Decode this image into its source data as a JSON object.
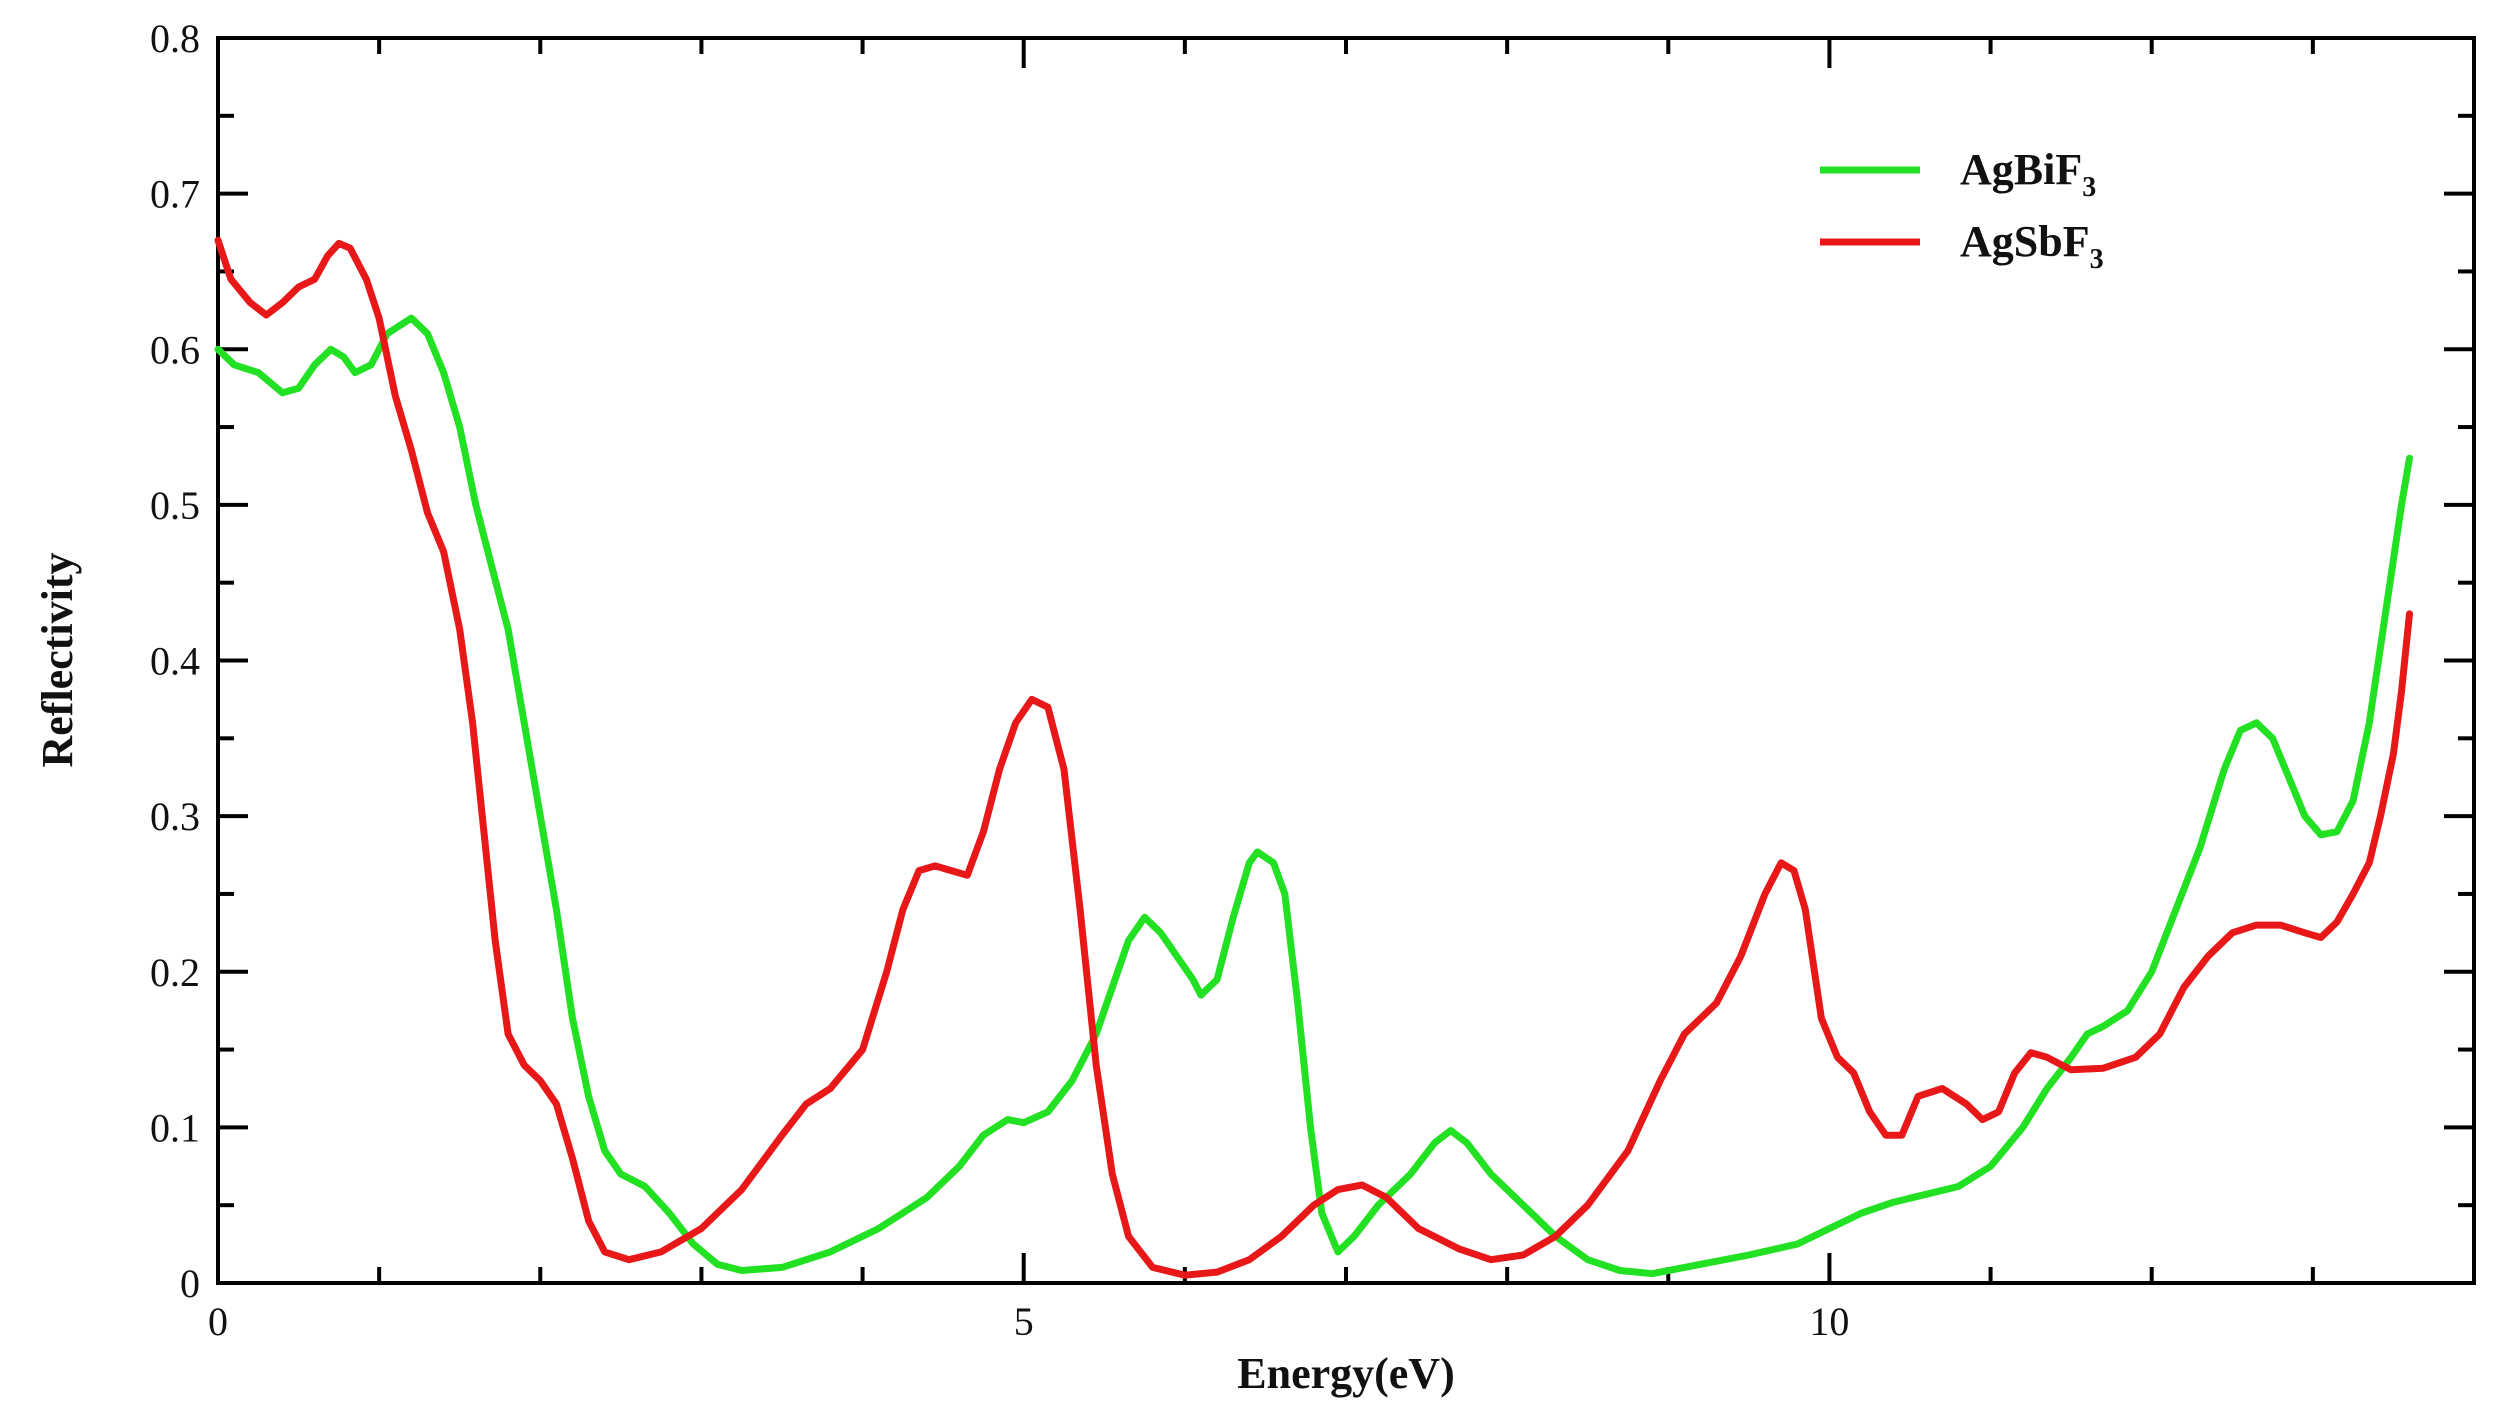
{
  "chart_data": {
    "type": "line",
    "title": "",
    "xlabel": "Energy(eV)",
    "ylabel": "Reflectivity",
    "xlim": [
      0,
      14
    ],
    "ylim": [
      0,
      0.8
    ],
    "x_ticks": [
      "0",
      "5",
      "10"
    ],
    "x_tick_values": [
      0,
      5,
      10
    ],
    "y_ticks": [
      "0",
      "0.1",
      "0.2",
      "0.3",
      "0.4",
      "0.5",
      "0.6",
      "0.7",
      "0.8"
    ],
    "y_tick_values": [
      0,
      0.1,
      0.2,
      0.3,
      0.4,
      0.5,
      0.6,
      0.7,
      0.8
    ],
    "grid": false,
    "legend_position": "top-right",
    "series": [
      {
        "name": "AgBiF",
        "name_subscript": "3",
        "color": "#22e022",
        "points": [
          [
            0.0,
            0.6
          ],
          [
            0.1,
            0.59
          ],
          [
            0.25,
            0.585
          ],
          [
            0.4,
            0.572
          ],
          [
            0.5,
            0.575
          ],
          [
            0.6,
            0.59
          ],
          [
            0.7,
            0.6
          ],
          [
            0.78,
            0.595
          ],
          [
            0.85,
            0.585
          ],
          [
            0.95,
            0.59
          ],
          [
            1.05,
            0.61
          ],
          [
            1.2,
            0.62
          ],
          [
            1.3,
            0.61
          ],
          [
            1.4,
            0.585
          ],
          [
            1.5,
            0.55
          ],
          [
            1.6,
            0.5
          ],
          [
            1.7,
            0.46
          ],
          [
            1.8,
            0.42
          ],
          [
            1.9,
            0.36
          ],
          [
            2.0,
            0.3
          ],
          [
            2.1,
            0.24
          ],
          [
            2.2,
            0.17
          ],
          [
            2.3,
            0.12
          ],
          [
            2.4,
            0.085
          ],
          [
            2.5,
            0.07
          ],
          [
            2.65,
            0.062
          ],
          [
            2.8,
            0.045
          ],
          [
            2.95,
            0.025
          ],
          [
            3.1,
            0.012
          ],
          [
            3.25,
            0.008
          ],
          [
            3.5,
            0.01
          ],
          [
            3.8,
            0.02
          ],
          [
            4.1,
            0.035
          ],
          [
            4.4,
            0.055
          ],
          [
            4.6,
            0.075
          ],
          [
            4.75,
            0.095
          ],
          [
            4.9,
            0.105
          ],
          [
            5.0,
            0.103
          ],
          [
            5.15,
            0.11
          ],
          [
            5.3,
            0.13
          ],
          [
            5.45,
            0.16
          ],
          [
            5.55,
            0.19
          ],
          [
            5.65,
            0.22
          ],
          [
            5.75,
            0.235
          ],
          [
            5.85,
            0.225
          ],
          [
            5.95,
            0.21
          ],
          [
            6.05,
            0.195
          ],
          [
            6.1,
            0.185
          ],
          [
            6.2,
            0.195
          ],
          [
            6.3,
            0.235
          ],
          [
            6.4,
            0.27
          ],
          [
            6.45,
            0.277
          ],
          [
            6.55,
            0.27
          ],
          [
            6.62,
            0.25
          ],
          [
            6.7,
            0.18
          ],
          [
            6.78,
            0.1
          ],
          [
            6.85,
            0.045
          ],
          [
            6.95,
            0.02
          ],
          [
            7.05,
            0.03
          ],
          [
            7.2,
            0.05
          ],
          [
            7.4,
            0.07
          ],
          [
            7.55,
            0.09
          ],
          [
            7.65,
            0.098
          ],
          [
            7.75,
            0.09
          ],
          [
            7.9,
            0.07
          ],
          [
            8.1,
            0.05
          ],
          [
            8.3,
            0.03
          ],
          [
            8.5,
            0.015
          ],
          [
            8.7,
            0.008
          ],
          [
            8.9,
            0.006
          ],
          [
            9.2,
            0.012
          ],
          [
            9.5,
            0.018
          ],
          [
            9.8,
            0.025
          ],
          [
            10.0,
            0.035
          ],
          [
            10.2,
            0.045
          ],
          [
            10.4,
            0.052
          ],
          [
            10.6,
            0.057
          ],
          [
            10.8,
            0.062
          ],
          [
            11.0,
            0.075
          ],
          [
            11.2,
            0.1
          ],
          [
            11.35,
            0.125
          ],
          [
            11.5,
            0.145
          ],
          [
            11.6,
            0.16
          ],
          [
            11.7,
            0.165
          ],
          [
            11.85,
            0.175
          ],
          [
            12.0,
            0.2
          ],
          [
            12.15,
            0.24
          ],
          [
            12.3,
            0.28
          ],
          [
            12.45,
            0.33
          ],
          [
            12.55,
            0.355
          ],
          [
            12.65,
            0.36
          ],
          [
            12.75,
            0.35
          ],
          [
            12.85,
            0.325
          ],
          [
            12.95,
            0.3
          ],
          [
            13.05,
            0.288
          ],
          [
            13.15,
            0.29
          ],
          [
            13.25,
            0.31
          ],
          [
            13.35,
            0.36
          ],
          [
            13.45,
            0.43
          ],
          [
            13.55,
            0.5
          ],
          [
            13.6,
            0.53
          ]
        ]
      },
      {
        "name": "AgSbF",
        "name_subscript": "3",
        "color": "#e81818",
        "points": [
          [
            0.0,
            0.67
          ],
          [
            0.08,
            0.645
          ],
          [
            0.2,
            0.63
          ],
          [
            0.3,
            0.622
          ],
          [
            0.4,
            0.63
          ],
          [
            0.5,
            0.64
          ],
          [
            0.6,
            0.645
          ],
          [
            0.68,
            0.66
          ],
          [
            0.75,
            0.668
          ],
          [
            0.82,
            0.665
          ],
          [
            0.92,
            0.645
          ],
          [
            1.0,
            0.62
          ],
          [
            1.1,
            0.57
          ],
          [
            1.2,
            0.535
          ],
          [
            1.3,
            0.495
          ],
          [
            1.4,
            0.47
          ],
          [
            1.5,
            0.42
          ],
          [
            1.58,
            0.36
          ],
          [
            1.65,
            0.29
          ],
          [
            1.72,
            0.22
          ],
          [
            1.8,
            0.16
          ],
          [
            1.9,
            0.14
          ],
          [
            2.0,
            0.13
          ],
          [
            2.1,
            0.115
          ],
          [
            2.2,
            0.08
          ],
          [
            2.3,
            0.04
          ],
          [
            2.4,
            0.02
          ],
          [
            2.55,
            0.015
          ],
          [
            2.75,
            0.02
          ],
          [
            3.0,
            0.035
          ],
          [
            3.25,
            0.06
          ],
          [
            3.5,
            0.095
          ],
          [
            3.65,
            0.115
          ],
          [
            3.8,
            0.125
          ],
          [
            4.0,
            0.15
          ],
          [
            4.15,
            0.2
          ],
          [
            4.25,
            0.24
          ],
          [
            4.35,
            0.265
          ],
          [
            4.45,
            0.268
          ],
          [
            4.55,
            0.265
          ],
          [
            4.65,
            0.262
          ],
          [
            4.75,
            0.29
          ],
          [
            4.85,
            0.33
          ],
          [
            4.95,
            0.36
          ],
          [
            5.05,
            0.375
          ],
          [
            5.15,
            0.37
          ],
          [
            5.25,
            0.33
          ],
          [
            5.35,
            0.24
          ],
          [
            5.45,
            0.14
          ],
          [
            5.55,
            0.07
          ],
          [
            5.65,
            0.03
          ],
          [
            5.8,
            0.01
          ],
          [
            6.0,
            0.005
          ],
          [
            6.2,
            0.007
          ],
          [
            6.4,
            0.015
          ],
          [
            6.6,
            0.03
          ],
          [
            6.8,
            0.05
          ],
          [
            6.95,
            0.06
          ],
          [
            7.1,
            0.063
          ],
          [
            7.25,
            0.055
          ],
          [
            7.45,
            0.035
          ],
          [
            7.7,
            0.022
          ],
          [
            7.9,
            0.015
          ],
          [
            8.1,
            0.018
          ],
          [
            8.3,
            0.03
          ],
          [
            8.5,
            0.05
          ],
          [
            8.75,
            0.085
          ],
          [
            8.95,
            0.13
          ],
          [
            9.1,
            0.16
          ],
          [
            9.3,
            0.18
          ],
          [
            9.45,
            0.21
          ],
          [
            9.6,
            0.25
          ],
          [
            9.7,
            0.27
          ],
          [
            9.78,
            0.265
          ],
          [
            9.85,
            0.24
          ],
          [
            9.95,
            0.17
          ],
          [
            10.05,
            0.145
          ],
          [
            10.15,
            0.135
          ],
          [
            10.25,
            0.11
          ],
          [
            10.35,
            0.095
          ],
          [
            10.45,
            0.095
          ],
          [
            10.55,
            0.12
          ],
          [
            10.7,
            0.125
          ],
          [
            10.85,
            0.115
          ],
          [
            10.95,
            0.105
          ],
          [
            11.05,
            0.11
          ],
          [
            11.15,
            0.135
          ],
          [
            11.25,
            0.148
          ],
          [
            11.35,
            0.145
          ],
          [
            11.5,
            0.137
          ],
          [
            11.7,
            0.138
          ],
          [
            11.9,
            0.145
          ],
          [
            12.05,
            0.16
          ],
          [
            12.2,
            0.19
          ],
          [
            12.35,
            0.21
          ],
          [
            12.5,
            0.225
          ],
          [
            12.65,
            0.23
          ],
          [
            12.8,
            0.23
          ],
          [
            12.95,
            0.225
          ],
          [
            13.05,
            0.222
          ],
          [
            13.15,
            0.232
          ],
          [
            13.25,
            0.25
          ],
          [
            13.35,
            0.27
          ],
          [
            13.42,
            0.3
          ],
          [
            13.5,
            0.34
          ],
          [
            13.55,
            0.38
          ],
          [
            13.6,
            0.43
          ]
        ]
      }
    ]
  }
}
